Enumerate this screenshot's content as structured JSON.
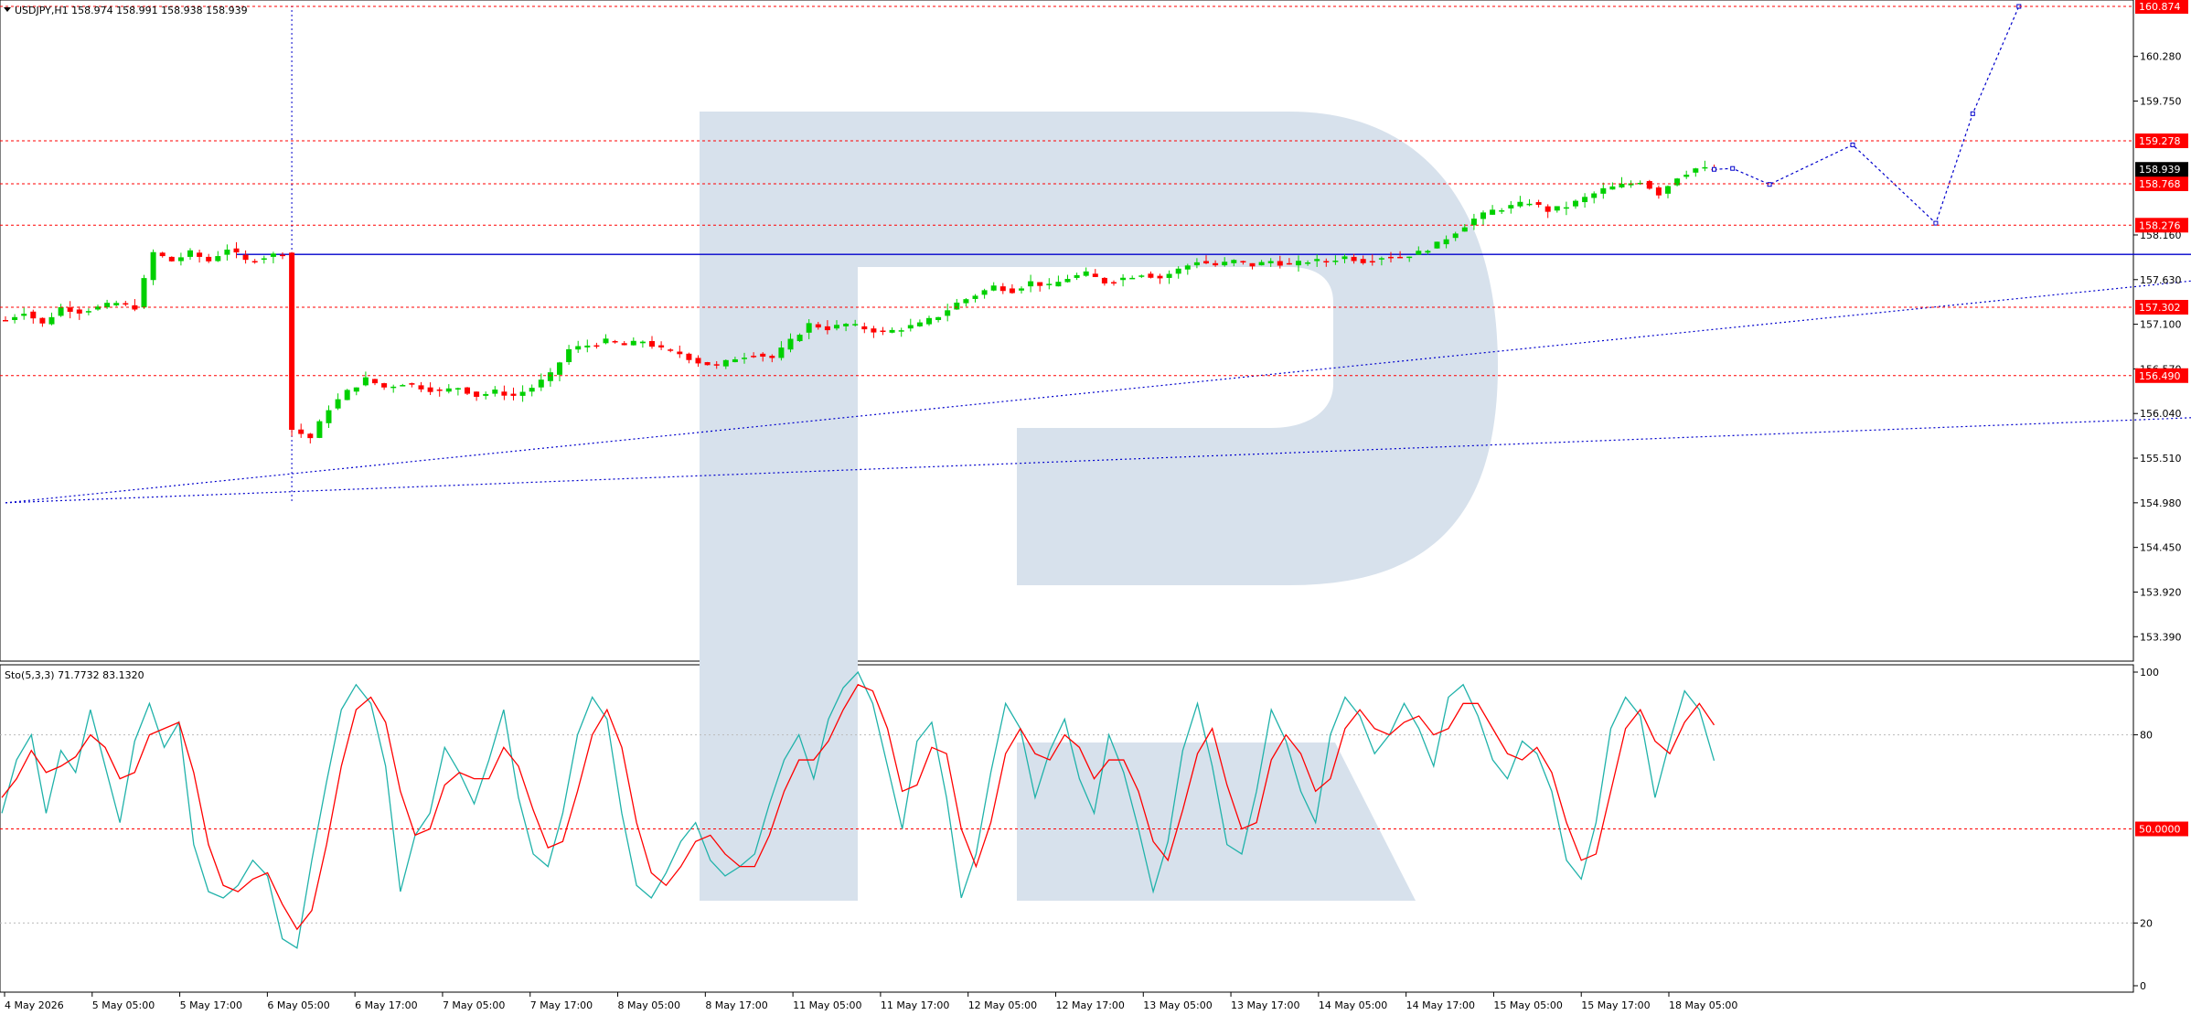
{
  "chart_data": [
    {
      "type": "candlestick",
      "title": "USDJPY,H1  158.974 158.991 158.938 158.939",
      "symbol": "USDJPY",
      "timeframe": "H1",
      "ohlc_last": {
        "open": 158.974,
        "high": 158.991,
        "low": 158.938,
        "close": 158.939
      },
      "ylim": [
        153.1,
        160.95
      ],
      "y_ticks": [
        "160.280",
        "159.750",
        "158.160",
        "157.630",
        "157.100",
        "156.570",
        "156.040",
        "155.510",
        "154.980",
        "154.450",
        "153.920",
        "153.390"
      ],
      "x_ticks": [
        "4 May 2026",
        "5 May 05:00",
        "5 May 17:00",
        "6 May 05:00",
        "6 May 17:00",
        "7 May 05:00",
        "7 May 17:00",
        "8 May 05:00",
        "8 May 17:00",
        "11 May 05:00",
        "11 May 17:00",
        "12 May 05:00",
        "12 May 17:00",
        "13 May 05:00",
        "13 May 17:00",
        "14 May 05:00",
        "14 May 17:00",
        "15 May 05:00",
        "15 May 17:00",
        "18 May 05:00"
      ],
      "price_levels": [
        {
          "label": "160.874",
          "value": 160.874
        },
        {
          "label": "159.278",
          "value": 159.278
        },
        {
          "label": "158.768",
          "value": 158.768
        },
        {
          "label": "158.276",
          "value": 158.276
        },
        {
          "label": "157.302",
          "value": 157.302
        },
        {
          "label": "156.490",
          "value": 156.49
        }
      ],
      "current_price": {
        "label": "158.939",
        "value": 158.939
      },
      "price_path": [
        [
          0,
          157.15
        ],
        [
          2,
          157.25
        ],
        [
          4,
          157.1
        ],
        [
          6,
          157.3
        ],
        [
          8,
          157.25
        ],
        [
          10,
          157.3
        ],
        [
          12,
          157.35
        ],
        [
          14,
          157.3
        ],
        [
          16,
          157.95
        ],
        [
          18,
          157.85
        ],
        [
          20,
          157.95
        ],
        [
          22,
          157.85
        ],
        [
          24,
          158.0
        ],
        [
          26,
          157.85
        ],
        [
          28,
          157.9
        ],
        [
          30,
          157.95
        ],
        [
          31,
          155.85
        ],
        [
          33,
          155.75
        ],
        [
          35,
          156.1
        ],
        [
          37,
          156.3
        ],
        [
          39,
          156.45
        ],
        [
          41,
          156.35
        ],
        [
          43,
          156.4
        ],
        [
          45,
          156.35
        ],
        [
          47,
          156.3
        ],
        [
          49,
          156.35
        ],
        [
          51,
          156.25
        ],
        [
          53,
          156.3
        ],
        [
          55,
          156.25
        ],
        [
          57,
          156.35
        ],
        [
          59,
          156.5
        ],
        [
          61,
          156.8
        ],
        [
          63,
          156.85
        ],
        [
          65,
          156.9
        ],
        [
          67,
          156.85
        ],
        [
          69,
          156.9
        ],
        [
          71,
          156.8
        ],
        [
          73,
          156.75
        ],
        [
          75,
          156.65
        ],
        [
          77,
          156.6
        ],
        [
          79,
          156.7
        ],
        [
          81,
          156.75
        ],
        [
          83,
          156.7
        ],
        [
          85,
          156.9
        ],
        [
          87,
          157.1
        ],
        [
          89,
          157.05
        ],
        [
          91,
          157.1
        ],
        [
          93,
          157.05
        ],
        [
          95,
          157.0
        ],
        [
          97,
          157.05
        ],
        [
          99,
          157.1
        ],
        [
          101,
          157.2
        ],
        [
          103,
          157.35
        ],
        [
          105,
          157.45
        ],
        [
          107,
          157.55
        ],
        [
          109,
          157.5
        ],
        [
          111,
          157.6
        ],
        [
          113,
          157.55
        ],
        [
          115,
          157.65
        ],
        [
          117,
          157.7
        ],
        [
          119,
          157.6
        ],
        [
          121,
          157.65
        ],
        [
          123,
          157.7
        ],
        [
          125,
          157.65
        ],
        [
          127,
          157.75
        ],
        [
          129,
          157.85
        ],
        [
          131,
          157.8
        ],
        [
          133,
          157.85
        ],
        [
          135,
          157.8
        ],
        [
          137,
          157.85
        ],
        [
          139,
          157.8
        ],
        [
          141,
          157.85
        ],
        [
          143,
          157.85
        ],
        [
          145,
          157.9
        ],
        [
          147,
          157.85
        ],
        [
          149,
          157.9
        ],
        [
          151,
          157.9
        ],
        [
          153,
          157.95
        ],
        [
          155,
          158.05
        ],
        [
          157,
          158.2
        ],
        [
          159,
          158.35
        ],
        [
          161,
          158.45
        ],
        [
          163,
          158.5
        ],
        [
          165,
          158.55
        ],
        [
          167,
          158.45
        ],
        [
          169,
          158.5
        ],
        [
          171,
          158.6
        ],
        [
          173,
          158.7
        ],
        [
          175,
          158.75
        ],
        [
          177,
          158.8
        ],
        [
          179,
          158.65
        ],
        [
          181,
          158.85
        ],
        [
          183,
          158.95
        ],
        [
          185,
          158.939
        ]
      ],
      "trend_lines": [
        {
          "name": "support-upper",
          "style": "dotted",
          "points": [
            [
              0,
              154.98
            ],
            [
              239,
              157.64
            ]
          ]
        },
        {
          "name": "support-lower",
          "style": "dotted",
          "points": [
            [
              0,
              154.98
            ],
            [
              239,
              156.0
            ]
          ]
        },
        {
          "name": "horizontal",
          "style": "solid",
          "points": [
            [
              25,
              157.93
            ],
            [
              239,
              157.93
            ]
          ]
        }
      ],
      "forecast_path": [
        [
          185,
          158.939
        ],
        [
          187,
          158.95
        ],
        [
          191,
          158.76
        ],
        [
          200,
          159.23
        ],
        [
          209,
          158.3
        ],
        [
          213,
          159.6
        ],
        [
          218,
          160.874
        ]
      ]
    },
    {
      "type": "line",
      "title": "Sto(5,3,3) 71.7732 83.1320",
      "ylim": [
        0,
        100
      ],
      "y_ticks": [
        "100",
        "80",
        "20",
        "0"
      ],
      "levels": [
        {
          "label": "50.0000",
          "value": 50
        }
      ],
      "series": [
        {
          "name": "%K",
          "color": "#20b2aa",
          "values": [
            55,
            72,
            80,
            55,
            75,
            68,
            88,
            70,
            52,
            78,
            90,
            76,
            84,
            45,
            30,
            28,
            32,
            40,
            35,
            15,
            12,
            40,
            65,
            88,
            96,
            90,
            70,
            30,
            48,
            55,
            76,
            68,
            58,
            72,
            88,
            60,
            42,
            38,
            55,
            80,
            92,
            85,
            55,
            32,
            28,
            36,
            46,
            52,
            40,
            35,
            38,
            42,
            58,
            72,
            80,
            66,
            85,
            95,
            100,
            90,
            70,
            50,
            78,
            84,
            60,
            28,
            42,
            68,
            90,
            82,
            60,
            75,
            85,
            66,
            55,
            80,
            68,
            50,
            30,
            46,
            75,
            90,
            70,
            45,
            42,
            62,
            88,
            78,
            62,
            52,
            80,
            92,
            86,
            74,
            80,
            90,
            82,
            70,
            92,
            96,
            86,
            72,
            66,
            78,
            74,
            62,
            40,
            34,
            52,
            82,
            92,
            86,
            60,
            78,
            94,
            88,
            71.77
          ]
        },
        {
          "name": "%D",
          "color": "#ff0000",
          "values": [
            60,
            66,
            75,
            68,
            70,
            73,
            80,
            76,
            66,
            68,
            80,
            82,
            84,
            68,
            45,
            32,
            30,
            34,
            36,
            26,
            18,
            24,
            45,
            70,
            88,
            92,
            84,
            62,
            48,
            50,
            64,
            68,
            66,
            66,
            76,
            70,
            56,
            44,
            46,
            62,
            80,
            88,
            76,
            52,
            36,
            32,
            38,
            46,
            48,
            42,
            38,
            38,
            48,
            62,
            72,
            72,
            78,
            88,
            96,
            94,
            82,
            62,
            64,
            76,
            74,
            50,
            38,
            52,
            74,
            82,
            74,
            72,
            80,
            76,
            66,
            72,
            72,
            62,
            46,
            40,
            56,
            74,
            82,
            64,
            50,
            52,
            72,
            80,
            74,
            62,
            66,
            82,
            88,
            82,
            80,
            84,
            86,
            80,
            82,
            90,
            90,
            82,
            74,
            72,
            76,
            68,
            52,
            40,
            42,
            62,
            82,
            88,
            78,
            74,
            84,
            90,
            83.13
          ]
        }
      ]
    }
  ],
  "colors": {
    "bull": "#00d000",
    "bear": "#ff0000",
    "level": "#ff0000",
    "trend": "#0000cc",
    "k_line": "#20b2aa",
    "d_line": "#ff0000"
  },
  "watermark_icon": "rbk-logo-watermark",
  "menu_icon": "dropdown-arrow-icon"
}
